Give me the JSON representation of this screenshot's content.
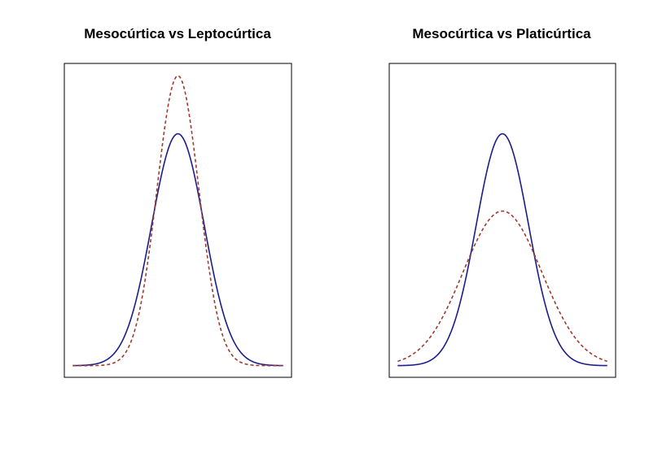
{
  "chart_data": [
    {
      "type": "line",
      "title": "Mesocúrtica vs Leptocúrtica",
      "xlabel": "",
      "ylabel": "",
      "xlim": [
        -4,
        4
      ],
      "ylim": [
        0,
        0.5
      ],
      "axes_visible": false,
      "grid": false,
      "series": [
        {
          "name": "Mesocúrtica",
          "distribution": "normal",
          "mean": 0,
          "sd": 1,
          "style": "solid",
          "color": "#1c1c8a"
        },
        {
          "name": "Leptocúrtica",
          "distribution": "normal",
          "mean": 0,
          "sd": 0.8,
          "style": "dashed",
          "color": "#a03a2e"
        }
      ]
    },
    {
      "type": "line",
      "title": "Mesocúrtica vs Platicúrtica",
      "xlabel": "",
      "ylabel": "",
      "xlim": [
        -4,
        4
      ],
      "ylim": [
        0,
        0.5
      ],
      "axes_visible": false,
      "grid": false,
      "series": [
        {
          "name": "Mesocúrtica",
          "distribution": "normal",
          "mean": 0,
          "sd": 1,
          "style": "solid",
          "color": "#1c1c8a"
        },
        {
          "name": "Platicúrtica",
          "distribution": "normal",
          "mean": 0,
          "sd": 1.5,
          "style": "dashed",
          "color": "#a03a2e"
        }
      ]
    }
  ]
}
